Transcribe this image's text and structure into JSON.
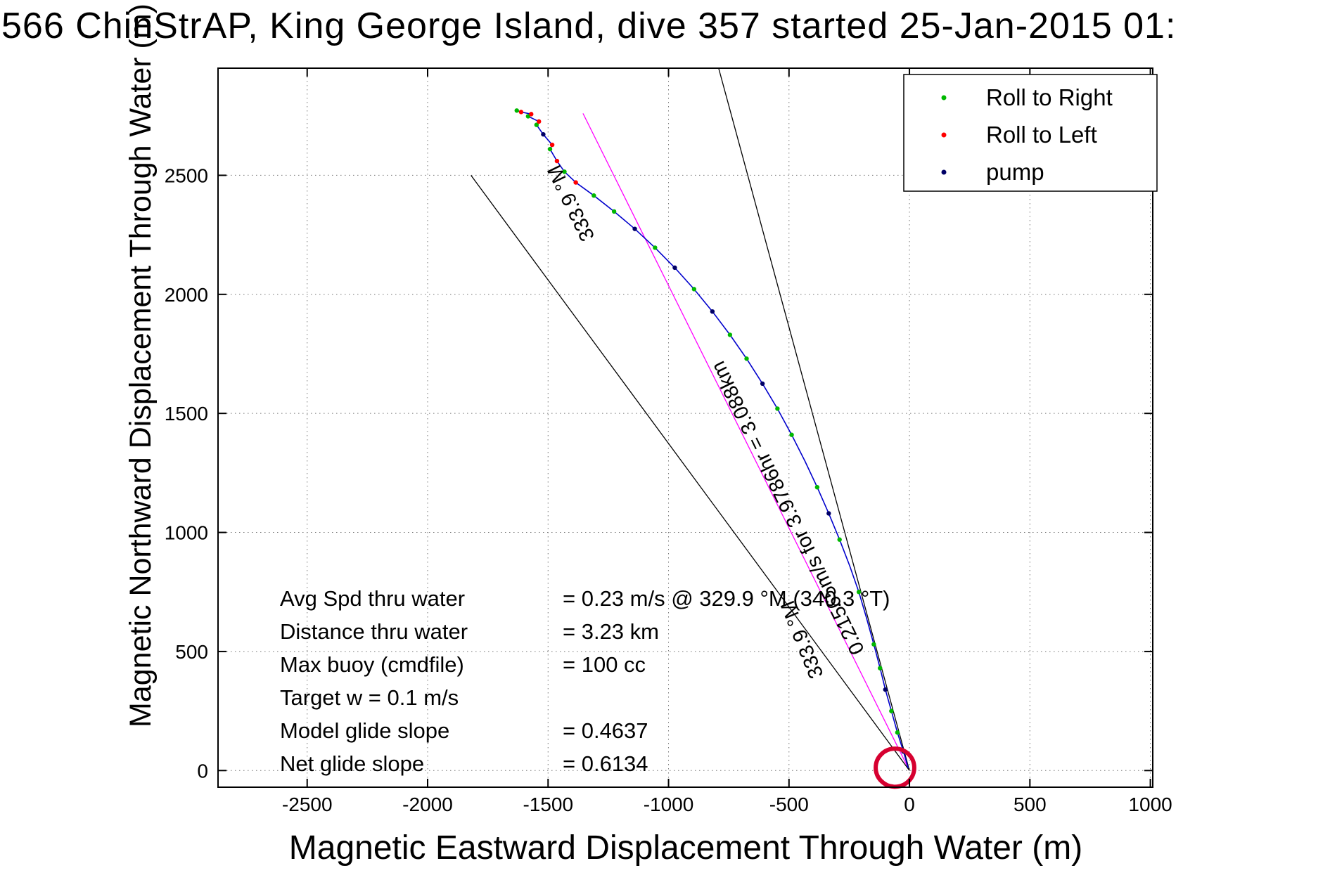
{
  "chart_data": {
    "type": "scatter",
    "title": "566 ChinStrAP, King George Island, dive 357 started 25-Jan-2015 01:",
    "xlabel": "Magnetic Eastward Displacement Through Water (m)",
    "ylabel": "Magnetic Northward Displacement Through Water (m)",
    "xlim": [
      -2870,
      1010
    ],
    "ylim": [
      -70,
      2950
    ],
    "xticks": [
      -2500,
      -2000,
      -1500,
      -1000,
      -500,
      0,
      500,
      1000
    ],
    "yticks": [
      0,
      500,
      1000,
      1500,
      2000,
      2500
    ],
    "grid": true,
    "grid_color": "#777777",
    "axis_color": "#000000",
    "legend": {
      "position": "top-right",
      "entries": [
        {
          "label": "Roll to Right",
          "color": "#00b800",
          "marker": "dot"
        },
        {
          "label": "Roll to Left",
          "color": "#ff0000",
          "marker": "dot"
        },
        {
          "label": "pump",
          "color": "#000066",
          "marker": "dot"
        }
      ]
    },
    "series": [
      {
        "name": "track-through-water",
        "type": "line",
        "color": "#0000cc",
        "points": [
          [
            -5,
            10
          ],
          [
            -25,
            80
          ],
          [
            -50,
            160
          ],
          [
            -75,
            250
          ],
          [
            -100,
            340
          ],
          [
            -122,
            430
          ],
          [
            -148,
            530
          ],
          [
            -178,
            640
          ],
          [
            -210,
            750
          ],
          [
            -248,
            860
          ],
          [
            -290,
            970
          ],
          [
            -335,
            1080
          ],
          [
            -383,
            1190
          ],
          [
            -434,
            1300
          ],
          [
            -489,
            1410
          ],
          [
            -548,
            1520
          ],
          [
            -610,
            1625
          ],
          [
            -676,
            1730
          ],
          [
            -745,
            1830
          ],
          [
            -818,
            1928
          ],
          [
            -894,
            2022
          ],
          [
            -974,
            2112
          ],
          [
            -1056,
            2196
          ],
          [
            -1140,
            2275
          ],
          [
            -1226,
            2348
          ],
          [
            -1310,
            2415
          ],
          [
            -1385,
            2470
          ],
          [
            -1432,
            2515
          ],
          [
            -1463,
            2560
          ],
          [
            -1492,
            2610
          ],
          [
            -1483,
            2628
          ],
          [
            -1520,
            2672
          ],
          [
            -1548,
            2712
          ],
          [
            -1538,
            2726
          ],
          [
            -1583,
            2748
          ],
          [
            -1570,
            2757
          ],
          [
            -1612,
            2766
          ],
          [
            -1630,
            2772
          ]
        ]
      },
      {
        "name": "Roll to Right",
        "type": "scatter",
        "color": "#00b800",
        "points": [
          [
            -50,
            160
          ],
          [
            -75,
            250
          ],
          [
            -122,
            430
          ],
          [
            -148,
            530
          ],
          [
            -210,
            750
          ],
          [
            -290,
            970
          ],
          [
            -383,
            1190
          ],
          [
            -489,
            1410
          ],
          [
            -548,
            1520
          ],
          [
            -676,
            1730
          ],
          [
            -745,
            1830
          ],
          [
            -894,
            2022
          ],
          [
            -1056,
            2196
          ],
          [
            -1226,
            2348
          ],
          [
            -1310,
            2415
          ],
          [
            -1432,
            2515
          ],
          [
            -1492,
            2610
          ],
          [
            -1548,
            2712
          ],
          [
            -1583,
            2748
          ],
          [
            -1630,
            2772
          ]
        ]
      },
      {
        "name": "Roll to Left",
        "type": "scatter",
        "color": "#ff0000",
        "points": [
          [
            -1385,
            2470
          ],
          [
            -1463,
            2560
          ],
          [
            -1483,
            2628
          ],
          [
            -1538,
            2726
          ],
          [
            -1570,
            2757
          ],
          [
            -1612,
            2766
          ]
        ]
      },
      {
        "name": "pump",
        "type": "scatter",
        "color": "#000066",
        "points": [
          [
            -25,
            80
          ],
          [
            -100,
            340
          ],
          [
            -335,
            1080
          ],
          [
            -610,
            1625
          ],
          [
            -818,
            1928
          ],
          [
            -974,
            2112
          ],
          [
            -1140,
            2275
          ],
          [
            -1520,
            2672
          ]
        ]
      },
      {
        "name": "surface-loop",
        "type": "circle",
        "color": "#d60030",
        "center": [
          -60,
          12
        ],
        "radius": 80
      }
    ],
    "reference_lines": [
      {
        "name": "mean-course-line",
        "color": "#ff00ff",
        "from": [
          0,
          0
        ],
        "to": [
          -1355,
          2760
        ]
      },
      {
        "name": "sector-line-left",
        "color": "#000000",
        "from": [
          0,
          0
        ],
        "to": [
          -1820,
          2500
        ]
      },
      {
        "name": "sector-line-right",
        "color": "#000000",
        "from": [
          0,
          0
        ],
        "to": [
          -792,
          2950
        ]
      }
    ],
    "annotations": [
      {
        "text": "0.21565m/s for 3.9786hr = 3.088km",
        "x": -480,
        "y": 1115,
        "rotation_deg": -116
      },
      {
        "text": "333.9 °M",
        "x": -1380,
        "y": 2395,
        "rotation_deg": -116
      },
      {
        "text": "333.9 °M",
        "x": -420,
        "y": 560,
        "rotation_deg": -112
      }
    ],
    "stats": [
      {
        "label": "Avg Spd thru water",
        "value": "=  0.23 m/s @ 329.9 °M (340.3 °T)"
      },
      {
        "label": "Distance thru water",
        "value": "=  3.23 km"
      },
      {
        "label": "Max buoy (cmdfile)",
        "value": "= 100 cc"
      },
      {
        "label": "Target w    = 0.1 m/s",
        "value": ""
      },
      {
        "label": "Model glide slope",
        "value": "= 0.4637"
      },
      {
        "label": "Net glide slope",
        "value": "= 0.6134"
      }
    ]
  }
}
